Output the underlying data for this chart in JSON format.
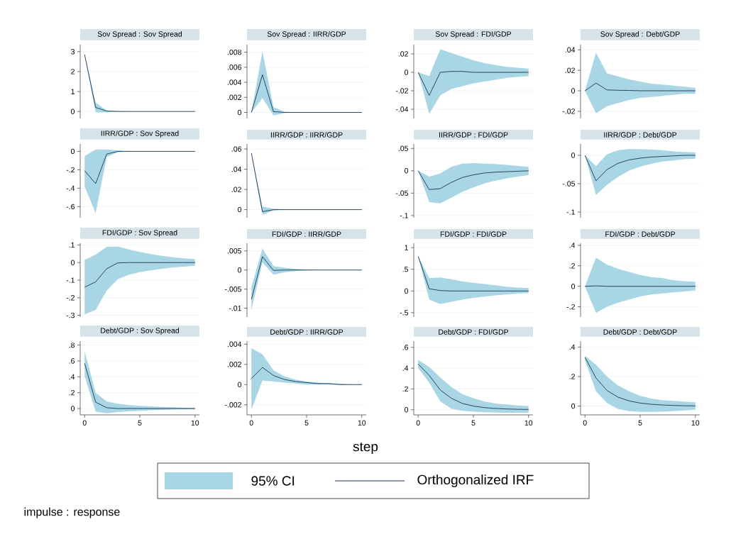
{
  "chart_data": [
    {
      "type": "line",
      "title": "Sov Spread : Sov Spread",
      "x": [
        0,
        1,
        2,
        3,
        4,
        5,
        6,
        7,
        8,
        9,
        10
      ],
      "xlim": [
        -0.4,
        10.4
      ],
      "xticks": [
        0,
        5,
        10
      ],
      "ylim": [
        -0.35,
        3.35
      ],
      "yticks": [
        0,
        1,
        2,
        3
      ],
      "grid": "y",
      "tick_labels": "y",
      "marker": "none",
      "series": [
        {
          "color": "#1c3553",
          "values": [
            2.85,
            0.2,
            0.02,
            0,
            0,
            0,
            0,
            0,
            0,
            0,
            0
          ],
          "lower": [
            2.85,
            -0.05,
            -0.05,
            0,
            0,
            0,
            0,
            0,
            0,
            0,
            0
          ],
          "upper": [
            2.85,
            0.45,
            0.05,
            0.01,
            0,
            0,
            0,
            0,
            0,
            0,
            0
          ]
        }
      ]
    },
    {
      "type": "line",
      "title": "Sov Spread : IIRR/GDP",
      "x": [
        0,
        1,
        2,
        3,
        4,
        5,
        6,
        7,
        8,
        9,
        10
      ],
      "xlim": [
        -0.4,
        10.4
      ],
      "xticks": [
        0,
        5,
        10
      ],
      "ylim": [
        -0.0008,
        0.009
      ],
      "yticks": [
        0,
        {
          "value": 0.002,
          "label": ".002"
        },
        {
          "value": 0.004,
          "label": ".004"
        },
        {
          "value": 0.006,
          "label": ".006"
        },
        {
          "value": 0.008,
          "label": ".008"
        }
      ],
      "grid": "y",
      "tick_labels": "y",
      "marker": "none",
      "series": [
        {
          "color": "#1c3553",
          "values": [
            0,
            0.005,
            0.0001,
            0,
            0,
            0,
            0,
            0,
            0,
            0,
            0
          ],
          "lower": [
            0,
            0.0019,
            -0.0004,
            -0.0001,
            0,
            0,
            0,
            0,
            0,
            0,
            0
          ],
          "upper": [
            0,
            0.0081,
            0.0007,
            0.0001,
            0,
            0,
            0,
            0,
            0,
            0,
            0
          ]
        }
      ]
    },
    {
      "type": "line",
      "title": "Sov Spread : FDI/GDP",
      "x": [
        0,
        1,
        2,
        3,
        4,
        5,
        6,
        7,
        8,
        9,
        10
      ],
      "xlim": [
        -0.4,
        10.4
      ],
      "xticks": [
        0,
        5,
        10
      ],
      "ylim": [
        -0.05,
        0.03
      ],
      "yticks": [
        {
          "value": -0.04,
          "label": "-.04"
        },
        {
          "value": -0.02,
          "label": "-.02"
        },
        0,
        {
          "value": 0.02,
          "label": ".02"
        }
      ],
      "grid": "y",
      "tick_labels": "y",
      "marker": "none",
      "series": [
        {
          "color": "#1c3553",
          "values": [
            0,
            -0.025,
            0,
            0.001,
            0.001,
            0,
            0,
            0,
            0,
            0,
            0
          ],
          "lower": [
            0,
            -0.045,
            -0.025,
            -0.018,
            -0.015,
            -0.012,
            -0.01,
            -0.008,
            -0.006,
            -0.005,
            -0.004
          ],
          "upper": [
            0,
            -0.004,
            0.025,
            0.021,
            0.017,
            0.013,
            0.01,
            0.0078,
            0.006,
            0.005,
            0.004
          ]
        }
      ]
    },
    {
      "type": "line",
      "title": "Sov Spread : Debt/GDP",
      "x": [
        0,
        1,
        2,
        3,
        4,
        5,
        6,
        7,
        8,
        9,
        10
      ],
      "xlim": [
        -0.4,
        10.4
      ],
      "xticks": [
        0,
        5,
        10
      ],
      "ylim": [
        -0.027,
        0.045
      ],
      "yticks": [
        {
          "value": -0.02,
          "label": "-.02"
        },
        0,
        {
          "value": 0.02,
          "label": ".02"
        },
        {
          "value": 0.04,
          "label": ".04"
        }
      ],
      "grid": "y",
      "tick_labels": "y",
      "marker": "none",
      "series": [
        {
          "color": "#1c3553",
          "values": [
            0,
            0.0075,
            0.0008,
            0.0005,
            0.0003,
            0,
            0,
            0,
            0,
            0,
            0
          ],
          "lower": [
            0,
            -0.022,
            -0.015,
            -0.012,
            -0.009,
            -0.007,
            -0.006,
            -0.005,
            -0.004,
            -0.003,
            -0.003
          ],
          "upper": [
            0,
            0.037,
            0.017,
            0.014,
            0.011,
            0.009,
            0.007,
            0.006,
            0.005,
            0.004,
            0.003
          ]
        }
      ]
    },
    {
      "type": "line",
      "title": "IIRR/GDP : Sov Spread",
      "x": [
        0,
        1,
        2,
        3,
        4,
        5,
        6,
        7,
        8,
        9,
        10
      ],
      "xlim": [
        -0.4,
        10.4
      ],
      "xticks": [
        0,
        5,
        10
      ],
      "ylim": [
        -0.72,
        0.08
      ],
      "yticks": [
        {
          "value": -0.6,
          "label": "-.6"
        },
        {
          "value": -0.4,
          "label": "-.4"
        },
        {
          "value": -0.2,
          "label": "-.2"
        },
        0
      ],
      "grid": "y",
      "tick_labels": "y",
      "marker": "none",
      "series": [
        {
          "color": "#1c3553",
          "values": [
            -0.21,
            -0.35,
            -0.03,
            0,
            0,
            0,
            0,
            0,
            0,
            0,
            0
          ],
          "lower": [
            -0.38,
            -0.67,
            -0.06,
            -0.01,
            0,
            0,
            0,
            0,
            0,
            0,
            0
          ],
          "upper": [
            -0.05,
            0.02,
            0.02,
            0.01,
            0,
            0,
            0,
            0,
            0,
            0,
            0
          ]
        }
      ]
    },
    {
      "type": "line",
      "title": "IIRR/GDP : IIRR/GDP",
      "x": [
        0,
        1,
        2,
        3,
        4,
        5,
        6,
        7,
        8,
        9,
        10
      ],
      "xlim": [
        -0.4,
        10.4
      ],
      "xticks": [
        0,
        5,
        10
      ],
      "ylim": [
        -0.008,
        0.065
      ],
      "yticks": [
        0,
        {
          "value": 0.02,
          "label": ".02"
        },
        {
          "value": 0.04,
          "label": ".04"
        },
        {
          "value": 0.06,
          "label": ".06"
        }
      ],
      "grid": "y",
      "tick_labels": "y",
      "marker": "none",
      "series": [
        {
          "color": "#1c3553",
          "values": [
            0.056,
            -0.002,
            0,
            0,
            0,
            0,
            0,
            0,
            0,
            0,
            0
          ],
          "lower": [
            0.056,
            -0.005,
            -0.001,
            0,
            0,
            0,
            0,
            0,
            0,
            0,
            0
          ],
          "upper": [
            0.056,
            0.003,
            0.001,
            0,
            0,
            0,
            0,
            0,
            0,
            0,
            0
          ]
        }
      ]
    },
    {
      "type": "line",
      "title": "IIRR/GDP : FDI/GDP",
      "x": [
        0,
        1,
        2,
        3,
        4,
        5,
        6,
        7,
        8,
        9,
        10
      ],
      "xlim": [
        -0.4,
        10.4
      ],
      "xticks": [
        0,
        5,
        10
      ],
      "ylim": [
        -0.105,
        0.06
      ],
      "yticks": [
        {
          "value": -0.1,
          "label": "-.1"
        },
        {
          "value": -0.05,
          "label": "-.05"
        },
        0,
        {
          "value": 0.05,
          "label": ".05"
        }
      ],
      "grid": "y",
      "tick_labels": "y",
      "marker": "none",
      "series": [
        {
          "color": "#1c3553",
          "values": [
            0,
            -0.042,
            -0.04,
            -0.026,
            -0.015,
            -0.009,
            -0.005,
            -0.003,
            -0.002,
            -0.001,
            0
          ],
          "lower": [
            0,
            -0.07,
            -0.073,
            -0.06,
            -0.047,
            -0.037,
            -0.028,
            -0.022,
            -0.017,
            -0.013,
            -0.01
          ],
          "upper": [
            0,
            -0.013,
            -0.006,
            0.009,
            0.016,
            0.017,
            0.016,
            0.015,
            0.013,
            0.011,
            0.009
          ]
        }
      ]
    },
    {
      "type": "line",
      "title": "IIRR/GDP : Debt/GDP",
      "x": [
        0,
        1,
        2,
        3,
        4,
        5,
        6,
        7,
        8,
        9,
        10
      ],
      "xlim": [
        -0.4,
        10.4
      ],
      "xticks": [
        0,
        5,
        10
      ],
      "ylim": [
        -0.11,
        0.02
      ],
      "yticks": [
        {
          "value": -0.1,
          "label": "-.1"
        },
        {
          "value": -0.05,
          "label": "-.05"
        },
        0
      ],
      "grid": "y",
      "tick_labels": "y",
      "marker": "none",
      "series": [
        {
          "color": "#1c3553",
          "values": [
            0,
            -0.045,
            -0.025,
            -0.014,
            -0.008,
            -0.005,
            -0.003,
            -0.002,
            -0.001,
            0,
            0
          ],
          "lower": [
            0,
            -0.07,
            -0.052,
            -0.038,
            -0.027,
            -0.02,
            -0.015,
            -0.011,
            -0.009,
            -0.007,
            -0.006
          ],
          "upper": [
            0,
            -0.019,
            0.002,
            0.009,
            0.011,
            0.011,
            0.01,
            0.009,
            0.007,
            0.006,
            0.005
          ]
        }
      ]
    },
    {
      "type": "line",
      "title": "FDI/GDP : Sov Spread",
      "x": [
        0,
        1,
        2,
        3,
        4,
        5,
        6,
        7,
        8,
        9,
        10
      ],
      "xlim": [
        -0.4,
        10.4
      ],
      "xticks": [
        0,
        5,
        10
      ],
      "ylim": [
        -0.31,
        0.11
      ],
      "yticks": [
        {
          "value": -0.3,
          "label": "-.3"
        },
        {
          "value": -0.2,
          "label": "-.2"
        },
        {
          "value": -0.1,
          "label": "-.1"
        },
        0,
        {
          "value": 0.1,
          "label": ".1"
        }
      ],
      "grid": "y",
      "tick_labels": "y",
      "marker": "none",
      "series": [
        {
          "color": "#1c3553",
          "values": [
            -0.14,
            -0.11,
            -0.035,
            -0.002,
            0,
            0,
            0,
            0,
            0,
            0,
            0
          ],
          "lower": [
            -0.295,
            -0.27,
            -0.16,
            -0.095,
            -0.07,
            -0.055,
            -0.045,
            -0.035,
            -0.028,
            -0.023,
            -0.018
          ],
          "upper": [
            0.015,
            0.045,
            0.09,
            0.092,
            0.075,
            0.06,
            0.048,
            0.038,
            0.03,
            0.024,
            0.019
          ]
        }
      ]
    },
    {
      "type": "line",
      "title": "FDI/GDP : IIRR/GDP",
      "x": [
        0,
        1,
        2,
        3,
        4,
        5,
        6,
        7,
        8,
        9,
        10
      ],
      "xlim": [
        -0.4,
        10.4
      ],
      "xticks": [
        0,
        5,
        10
      ],
      "ylim": [
        -0.0123,
        0.007
      ],
      "yticks": [
        {
          "value": -0.01,
          "label": "-.01"
        },
        {
          "value": -0.005,
          "label": "-.005"
        },
        0,
        {
          "value": 0.005,
          "label": ".005"
        }
      ],
      "grid": "y",
      "tick_labels": "y",
      "marker": "none",
      "series": [
        {
          "color": "#1c3553",
          "values": [
            -0.0077,
            0.0035,
            -0.0001,
            0,
            0,
            0,
            0,
            0,
            0,
            0,
            0
          ],
          "lower": [
            -0.0105,
            0.002,
            -0.0012,
            -0.0006,
            -0.0003,
            -0.0001,
            0,
            0,
            0,
            0,
            0
          ],
          "upper": [
            -0.0045,
            0.0056,
            0.001,
            0.0006,
            0.0003,
            0.0001,
            0,
            0,
            0,
            0,
            0
          ]
        }
      ]
    },
    {
      "type": "line",
      "title": "FDI/GDP : FDI/GDP",
      "x": [
        0,
        1,
        2,
        3,
        4,
        5,
        6,
        7,
        8,
        9,
        10
      ],
      "xlim": [
        -0.4,
        10.4
      ],
      "xticks": [
        0,
        5,
        10
      ],
      "ylim": [
        -0.6,
        1.1
      ],
      "yticks": [
        {
          "value": -0.5,
          "label": "-.5"
        },
        0,
        {
          "value": 0.5,
          "label": ".5"
        },
        1
      ],
      "grid": "y",
      "tick_labels": "y",
      "marker": "none",
      "series": [
        {
          "color": "#1c3553",
          "values": [
            0.8,
            0.05,
            0.01,
            0,
            0,
            0,
            0,
            0,
            0,
            0,
            0
          ],
          "lower": [
            0.8,
            -0.2,
            -0.3,
            -0.25,
            -0.2,
            -0.16,
            -0.13,
            -0.1,
            -0.08,
            -0.06,
            -0.05
          ],
          "upper": [
            0.8,
            0.3,
            0.31,
            0.27,
            0.22,
            0.19,
            0.16,
            0.13,
            0.1,
            0.08,
            0.07
          ]
        }
      ]
    },
    {
      "type": "line",
      "title": "FDI/GDP : Debt/GDP",
      "x": [
        0,
        1,
        2,
        3,
        4,
        5,
        6,
        7,
        8,
        9,
        10
      ],
      "xlim": [
        -0.4,
        10.4
      ],
      "xticks": [
        0,
        5,
        10
      ],
      "ylim": [
        -0.3,
        0.42
      ],
      "yticks": [
        {
          "value": -0.2,
          "label": "-.2"
        },
        0,
        {
          "value": 0.2,
          "label": ".2"
        },
        {
          "value": 0.4,
          "label": ".4"
        }
      ],
      "grid": "y",
      "tick_labels": "y",
      "marker": "none",
      "series": [
        {
          "color": "#1c3553",
          "values": [
            0,
            0.004,
            0,
            0,
            0,
            0,
            0,
            0,
            0,
            0,
            0
          ],
          "lower": [
            0,
            -0.26,
            -0.2,
            -0.16,
            -0.13,
            -0.1,
            -0.08,
            -0.07,
            -0.06,
            -0.05,
            -0.04
          ],
          "upper": [
            0,
            0.28,
            0.21,
            0.17,
            0.14,
            0.11,
            0.09,
            0.08,
            0.06,
            0.05,
            0.045
          ]
        }
      ]
    },
    {
      "type": "line",
      "title": "Debt/GDP : Sov Spread",
      "x": [
        0,
        1,
        2,
        3,
        4,
        5,
        6,
        7,
        8,
        9,
        10
      ],
      "xlim": [
        -0.4,
        10.4
      ],
      "xticks": [
        0,
        5,
        10
      ],
      "ylim": [
        -0.08,
        0.85
      ],
      "yticks": [
        0,
        {
          "value": 0.2,
          "label": ".2"
        },
        {
          "value": 0.4,
          "label": ".4"
        },
        {
          "value": 0.6,
          "label": ".6"
        },
        {
          "value": 0.8,
          "label": ".8"
        }
      ],
      "grid": "y",
      "marker": "none",
      "series": [
        {
          "color": "#1c3553",
          "values": [
            0.57,
            0.08,
            0.01,
            0,
            0,
            0,
            0,
            0,
            0,
            0,
            0
          ],
          "lower": [
            0.41,
            -0.04,
            -0.06,
            -0.045,
            -0.035,
            -0.028,
            -0.022,
            -0.017,
            -0.014,
            -0.011,
            -0.009
          ],
          "upper": [
            0.72,
            0.2,
            0.09,
            0.06,
            0.045,
            0.035,
            0.027,
            0.02,
            0.015,
            0.012,
            0.01
          ]
        }
      ]
    },
    {
      "type": "line",
      "title": "Debt/GDP : IIRR/GDP",
      "x": [
        0,
        1,
        2,
        3,
        4,
        5,
        6,
        7,
        8,
        9,
        10
      ],
      "xlim": [
        -0.4,
        10.4
      ],
      "xticks": [
        0,
        5,
        10
      ],
      "ylim": [
        -0.003,
        0.0043
      ],
      "yticks": [
        {
          "value": -0.002,
          "label": "-.002"
        },
        0,
        {
          "value": 0.002,
          "label": ".002"
        },
        {
          "value": 0.004,
          "label": ".004"
        }
      ],
      "grid": "y",
      "marker": "none",
      "series": [
        {
          "color": "#1c3553",
          "values": [
            0.0006,
            0.0017,
            0.0009,
            0.0005,
            0.0003,
            0.0002,
            0.0001,
            0.0001,
            0,
            0,
            0
          ],
          "lower": [
            -0.0025,
            0.0004,
            0.0003,
            0.0002,
            0.0001,
            0,
            0,
            0,
            0,
            0,
            0
          ],
          "upper": [
            0.0036,
            0.003,
            0.0014,
            0.0008,
            0.0005,
            0.0003,
            0.0002,
            0.0001,
            0.0001,
            0,
            0
          ]
        }
      ]
    },
    {
      "type": "line",
      "title": "Debt/GDP : FDI/GDP",
      "x": [
        0,
        1,
        2,
        3,
        4,
        5,
        6,
        7,
        8,
        9,
        10
      ],
      "xlim": [
        -0.4,
        10.4
      ],
      "xticks": [
        0,
        5,
        10
      ],
      "ylim": [
        -0.05,
        0.66
      ],
      "yticks": [
        0,
        {
          "value": 0.2,
          "label": ".2"
        },
        {
          "value": 0.4,
          "label": ".4"
        },
        {
          "value": 0.6,
          "label": ".6"
        }
      ],
      "grid": "y",
      "marker": "none",
      "series": [
        {
          "color": "#1c3553",
          "values": [
            0.44,
            0.33,
            0.19,
            0.11,
            0.06,
            0.035,
            0.02,
            0.012,
            0.007,
            0.004,
            0.002
          ],
          "lower": [
            0.4,
            0.26,
            0.08,
            0.01,
            -0.01,
            -0.02,
            -0.025,
            -0.028,
            -0.03,
            -0.029,
            -0.03
          ],
          "upper": [
            0.48,
            0.41,
            0.31,
            0.22,
            0.15,
            0.11,
            0.08,
            0.06,
            0.05,
            0.04,
            0.035
          ]
        }
      ]
    },
    {
      "type": "line",
      "title": "Debt/GDP : Debt/GDP",
      "x": [
        0,
        1,
        2,
        3,
        4,
        5,
        6,
        7,
        8,
        9,
        10
      ],
      "xlim": [
        -0.4,
        10.4
      ],
      "xticks": [
        0,
        5,
        10
      ],
      "ylim": [
        -0.06,
        0.44
      ],
      "yticks": [
        0,
        {
          "value": 0.2,
          "label": ".2"
        },
        {
          "value": 0.4,
          "label": ".4"
        }
      ],
      "grid": "y",
      "marker": "none",
      "legend": "bottom",
      "annotations": [
        "step",
        "95% CI",
        "impulse : response"
      ],
      "series": [
        {
          "name": "Orthogonalized IRF",
          "color": "#1c3553",
          "values": [
            0.33,
            0.19,
            0.105,
            0.06,
            0.035,
            0.02,
            0.012,
            0.007,
            0.004,
            0.002,
            0.001
          ],
          "lower": [
            0.31,
            0.1,
            0.02,
            -0.02,
            -0.035,
            -0.04,
            -0.04,
            -0.038,
            -0.035,
            -0.03,
            -0.025
          ],
          "upper": [
            0.34,
            0.28,
            0.2,
            0.14,
            0.1,
            0.07,
            0.05,
            0.04,
            0.035,
            0.03,
            0.025
          ]
        }
      ]
    }
  ]
}
